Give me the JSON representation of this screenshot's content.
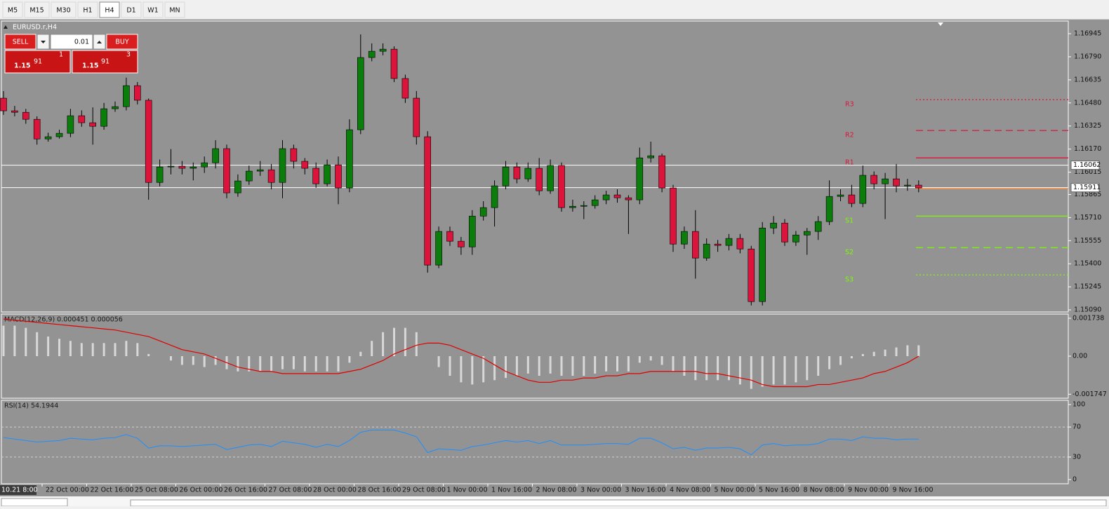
{
  "toolbar": {
    "timeframes": [
      "M5",
      "M15",
      "M30",
      "H1",
      "H4",
      "D1",
      "W1",
      "MN"
    ],
    "active": "H4"
  },
  "trade_panel": {
    "sell": "SELL",
    "lots": "0.01",
    "buy": "BUY",
    "bid": {
      "big": "1.15",
      "pips": "91",
      "point": "1"
    },
    "ask": {
      "big": "1.15",
      "pips": "91",
      "point": "3"
    }
  },
  "chart_data": [
    {
      "type": "candlestick",
      "title": "EURUSD.r,H4",
      "colors": {
        "up": "#0b7d0b",
        "down": "#dc143c"
      },
      "open": [
        1.16512,
        1.16427,
        1.16417,
        1.1637,
        1.16238,
        1.16253,
        1.16276,
        1.16394,
        1.16347,
        1.16323,
        1.16441,
        1.16455,
        1.16596,
        1.16498,
        1.15946,
        1.1605,
        1.16055,
        1.16041,
        1.1605,
        1.16078,
        1.16173,
        1.15876,
        1.15956,
        1.16022,
        1.16031,
        1.15946,
        1.16173,
        1.16088,
        1.16041,
        1.15937,
        1.16064,
        1.15909,
        1.163,
        1.16785,
        1.16827,
        1.16841,
        1.16644,
        1.16512,
        1.16253,
        1.15391,
        1.15617,
        1.15551,
        1.15513,
        1.1572,
        1.15777,
        1.15923,
        1.1605,
        1.1597,
        1.16041,
        1.1589,
        1.1606,
        1.15777,
        1.15786,
        1.15791,
        1.15829,
        1.15862,
        1.15843,
        1.15829,
        1.16111,
        1.16125,
        1.15909,
        1.15532,
        1.15617,
        1.15438,
        1.15532,
        1.15523,
        1.1557,
        1.15499,
        1.15146,
        1.1564,
        1.15673,
        1.15546,
        1.15593,
        1.15617,
        1.15683,
        1.15852,
        1.15862,
        1.15805,
        1.15994,
        1.15937,
        1.1597,
        1.15923,
        1.15928
      ],
      "high": [
        1.1656,
        1.1646,
        1.1644,
        1.1639,
        1.1628,
        1.163,
        1.1644,
        1.1643,
        1.1645,
        1.1648,
        1.1649,
        1.1665,
        1.1662,
        1.1651,
        1.161,
        1.1617,
        1.1609,
        1.1608,
        1.1612,
        1.1623,
        1.162,
        1.16,
        1.1606,
        1.1609,
        1.1607,
        1.1623,
        1.162,
        1.1611,
        1.1608,
        1.161,
        1.1612,
        1.1637,
        1.1694,
        1.1688,
        1.1688,
        1.1686,
        1.1667,
        1.1656,
        1.1629,
        1.1565,
        1.1565,
        1.1558,
        1.1576,
        1.1582,
        1.1596,
        1.1609,
        1.1608,
        1.1608,
        1.1611,
        1.161,
        1.1608,
        1.1583,
        1.1582,
        1.1586,
        1.1589,
        1.159,
        1.1586,
        1.1618,
        1.1622,
        1.1614,
        1.1593,
        1.1565,
        1.1576,
        1.1557,
        1.1556,
        1.156,
        1.156,
        1.1552,
        1.1568,
        1.1572,
        1.157,
        1.1562,
        1.1564,
        1.1572,
        1.1596,
        1.159,
        1.1593,
        1.1606,
        1.1602,
        1.1601,
        1.1607,
        1.1597,
        1.1596
      ],
      "low": [
        1.164,
        1.1639,
        1.1634,
        1.162,
        1.1622,
        1.1624,
        1.1625,
        1.1632,
        1.162,
        1.163,
        1.1642,
        1.1643,
        1.1647,
        1.1583,
        1.1592,
        1.16,
        1.16,
        1.1596,
        1.1601,
        1.1604,
        1.1584,
        1.1585,
        1.1593,
        1.1599,
        1.159,
        1.1584,
        1.1604,
        1.16,
        1.1591,
        1.1592,
        1.158,
        1.1588,
        1.1627,
        1.1676,
        1.168,
        1.1662,
        1.1648,
        1.162,
        1.1534,
        1.1537,
        1.1552,
        1.1546,
        1.1546,
        1.1569,
        1.1565,
        1.159,
        1.1594,
        1.1595,
        1.1586,
        1.1587,
        1.1575,
        1.1575,
        1.157,
        1.1577,
        1.158,
        1.1581,
        1.156,
        1.158,
        1.1608,
        1.1588,
        1.1548,
        1.155,
        1.153,
        1.1542,
        1.1548,
        1.1549,
        1.1547,
        1.1512,
        1.1512,
        1.156,
        1.1552,
        1.1552,
        1.1546,
        1.1556,
        1.1566,
        1.1582,
        1.1578,
        1.1578,
        1.159,
        1.157,
        1.1588,
        1.1589,
        1.1588
      ],
      "close": [
        1.16427,
        1.16417,
        1.1637,
        1.16238,
        1.16253,
        1.16276,
        1.16394,
        1.16347,
        1.16323,
        1.16441,
        1.16455,
        1.16596,
        1.16498,
        1.15946,
        1.1605,
        1.16055,
        1.16041,
        1.1605,
        1.16078,
        1.16173,
        1.15876,
        1.15956,
        1.16022,
        1.16031,
        1.15946,
        1.16173,
        1.16088,
        1.16041,
        1.15937,
        1.16064,
        1.15909,
        1.163,
        1.16785,
        1.16827,
        1.16841,
        1.16644,
        1.16512,
        1.16253,
        1.15391,
        1.15617,
        1.15551,
        1.15513,
        1.1572,
        1.15777,
        1.15923,
        1.1605,
        1.1597,
        1.16041,
        1.1589,
        1.1606,
        1.15777,
        1.15786,
        1.15791,
        1.15829,
        1.15862,
        1.15843,
        1.15829,
        1.16111,
        1.16125,
        1.15909,
        1.15532,
        1.15617,
        1.15438,
        1.15532,
        1.15523,
        1.1557,
        1.15499,
        1.15146,
        1.1564,
        1.15673,
        1.15546,
        1.15593,
        1.15617,
        1.15683,
        1.15852,
        1.15862,
        1.15805,
        1.15994,
        1.15937,
        1.1597,
        1.15923,
        1.15928,
        1.15909
      ],
      "ylim": [
        1.15076,
        1.1703
      ],
      "yticks": [
        1.16945,
        {
          "value": 1.1679,
          "label": "1.16790"
        },
        1.16635,
        {
          "value": 1.1648,
          "label": "1.16480"
        },
        1.16325,
        {
          "value": 1.1617,
          "label": "1.16170"
        },
        1.16015,
        1.15865,
        {
          "value": 1.1571,
          "label": "1.15710"
        },
        1.15555,
        {
          "value": 1.154,
          "label": "1.15400"
        },
        1.15245,
        {
          "value": 1.1509,
          "label": "1.15090"
        }
      ],
      "price_lines": [
        1.16062,
        1.15911
      ],
      "pivots": {
        "names": [
          "R3",
          "R2",
          "R1",
          "S1",
          "S2",
          "S3"
        ],
        "values": [
          1.16502,
          1.16295,
          1.16111,
          1.1572,
          1.15508,
          1.15325
        ],
        "colors": [
          "#dc143c",
          "#dc143c",
          "#dc143c",
          "#7cfc00",
          "#7cfc00",
          "#7cfc00"
        ],
        "styles": [
          "dotted",
          "dashed",
          "solid",
          "solid",
          "dashed",
          "dotted"
        ]
      },
      "pivot_point": {
        "value": 1.15905,
        "color": "#ff8c3a"
      }
    },
    {
      "type": "histogram",
      "title": "MACD(12,26,9) 0.000451 0.000056",
      "color": "#d8d8d8",
      "signal_color": "#e00000",
      "values": [
        0.0014,
        0.0014,
        0.0013,
        0.0011,
        0.0009,
        0.0008,
        0.0007,
        0.0006,
        0.0006,
        0.0006,
        0.0006,
        0.0007,
        0.0006,
        0.0001,
        0,
        -0.0002,
        -0.0004,
        -0.0004,
        -0.0005,
        -0.0004,
        -0.0006,
        -0.0007,
        -0.0007,
        -0.0007,
        -0.0007,
        -0.0006,
        -0.0006,
        -0.0007,
        -0.0007,
        -0.0007,
        -0.0007,
        -0.0003,
        0.0002,
        0.0007,
        0.0011,
        0.0013,
        0.0013,
        0.0011,
        0,
        -0.0005,
        -0.0009,
        -0.0012,
        -0.0013,
        -0.0012,
        -0.0011,
        -0.001,
        -0.0009,
        -0.0008,
        -0.0009,
        -0.0008,
        -0.0009,
        -0.0009,
        -0.0009,
        -0.0008,
        -0.0007,
        -0.0007,
        -0.0007,
        -0.0003,
        -0.0002,
        -0.0004,
        -0.0007,
        -0.0009,
        -0.0011,
        -0.0011,
        -0.0011,
        -0.0011,
        -0.0013,
        -0.0015,
        -0.0014,
        -0.0013,
        -0.0013,
        -0.0012,
        -0.0011,
        -0.0009,
        -0.0006,
        -0.0004,
        -0.0001,
        0.0001,
        0.0002,
        0.0003,
        0.0004,
        0.0005,
        0.0005
      ],
      "signal": [
        0.0017,
        0.00165,
        0.0016,
        0.00155,
        0.0015,
        0.00145,
        0.0014,
        0.00135,
        0.0013,
        0.00125,
        0.0012,
        0.0011,
        0.001,
        0.0009,
        0.0007,
        0.0005,
        0.0003,
        0.0002,
        0.0001,
        -0.0001,
        -0.0003,
        -0.0005,
        -0.0006,
        -0.0007,
        -0.0007,
        -0.0008,
        -0.0008,
        -0.0008,
        -0.0008,
        -0.0008,
        -0.0008,
        -0.0007,
        -0.0006,
        -0.0004,
        -0.0002,
        0.0001,
        0.0003,
        0.0005,
        0.0006,
        0.0006,
        0.0005,
        0.0003,
        0.0001,
        -0.0001,
        -0.0004,
        -0.0007,
        -0.0009,
        -0.0011,
        -0.0012,
        -0.0012,
        -0.0011,
        -0.0011,
        -0.001,
        -0.001,
        -0.0009,
        -0.0009,
        -0.0008,
        -0.0008,
        -0.0007,
        -0.0007,
        -0.0007,
        -0.0007,
        -0.0007,
        -0.0008,
        -0.0008,
        -0.0009,
        -0.001,
        -0.0011,
        -0.0013,
        -0.0014,
        -0.0014,
        -0.0014,
        -0.0014,
        -0.0013,
        -0.0013,
        -0.0012,
        -0.0011,
        -0.001,
        -0.0008,
        -0.0007,
        -0.0005,
        -0.0003,
        0
      ],
      "ylim": [
        -0.00193,
        0.00193
      ],
      "yticks": [
        0.001738,
        {
          "value": 0,
          "label": "0.00"
        },
        -0.001747
      ]
    },
    {
      "type": "line",
      "title": "RSI(14) 54.1944",
      "color": "#1e8fff",
      "values": [
        56,
        54,
        52,
        50,
        51,
        52,
        55,
        54,
        53,
        55,
        56,
        60,
        55,
        42,
        45,
        45,
        44,
        45,
        46,
        47,
        40,
        43,
        46,
        47,
        44,
        51,
        49,
        47,
        43,
        47,
        44,
        52,
        63,
        66,
        66,
        66,
        62,
        57,
        36,
        41,
        40,
        39,
        44,
        46,
        49,
        52,
        50,
        52,
        48,
        52,
        46,
        46,
        46,
        47,
        48,
        48,
        47,
        55,
        55,
        49,
        41,
        43,
        39,
        42,
        42,
        43,
        41,
        33,
        46,
        48,
        45,
        46,
        46,
        48,
        54,
        54,
        52,
        57,
        55,
        55,
        53,
        54,
        54
      ],
      "ylim": [
        -5.6,
        105.6
      ],
      "yticks": [
        100,
        70,
        30,
        0
      ],
      "levels": [
        70,
        30
      ]
    }
  ],
  "time_axis": {
    "corner": "10.21 8:00",
    "labels": [
      "22 Oct 00:00",
      "22 Oct 16:00",
      "25 Oct 08:00",
      "26 Oct 00:00",
      "26 Oct 16:00",
      "27 Oct 08:00",
      "28 Oct 00:00",
      "28 Oct 16:00",
      "29 Oct 08:00",
      "1 Nov 00:00",
      "1 Nov 16:00",
      "2 Nov 08:00",
      "3 Nov 00:00",
      "3 Nov 16:00",
      "4 Nov 08:00",
      "5 Nov 00:00",
      "5 Nov 16:00",
      "8 Nov 08:00",
      "9 Nov 00:00",
      "9 Nov 16:00"
    ]
  }
}
